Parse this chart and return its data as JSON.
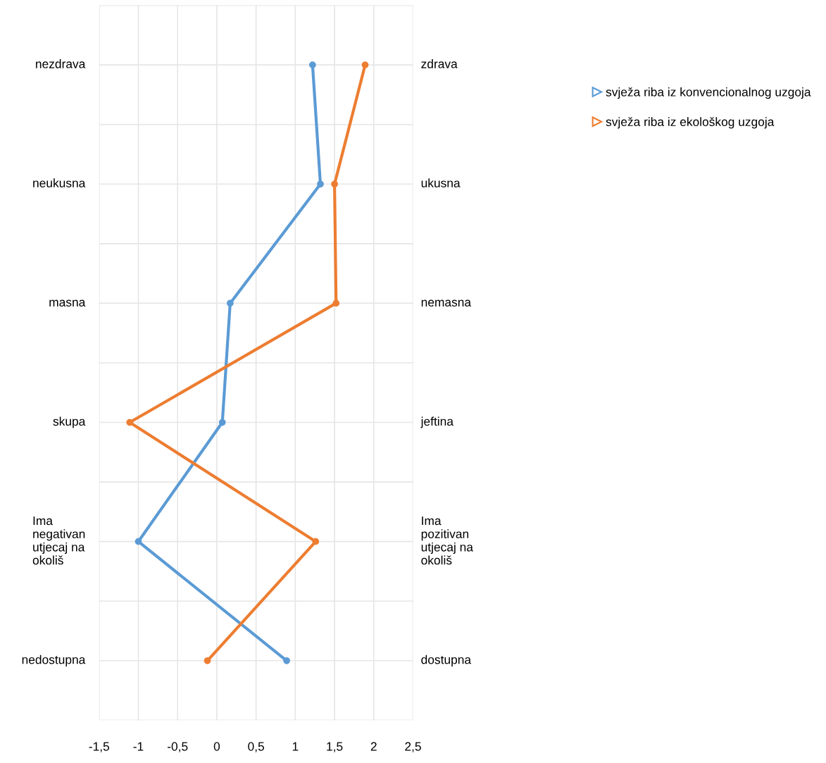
{
  "chart_data": {
    "type": "line",
    "orientation": "horizontal",
    "categories": [
      "nezdrava",
      "neukusna",
      "masna",
      "skupa",
      "Ima\nnegativan\nutjecaj na\nokoliš",
      "nedostupna"
    ],
    "annotations": [
      "zdrava",
      "ukusna",
      "nemasna",
      "jeftina",
      "Ima\npozitivan\nutjecaj na\nokoliš",
      "dostupna"
    ],
    "series": [
      {
        "name": "svježa riba iz konvencionalnog uzgoja",
        "color": "#5b9bd5",
        "values": [
          1.22,
          1.32,
          0.17,
          0.07,
          -1.0,
          0.89
        ]
      },
      {
        "name": "svježa riba iz ekološkog uzgoja",
        "color": "#ed7d31",
        "values": [
          1.89,
          1.5,
          1.52,
          -1.11,
          1.26,
          -0.12
        ]
      }
    ],
    "xlim": [
      -1.5,
      2.5
    ],
    "xticks": [
      {
        "value": -1.5,
        "label": "-1,5"
      },
      {
        "value": -1,
        "label": "-1"
      },
      {
        "value": -0.5,
        "label": "-0,5"
      },
      0,
      {
        "value": 0.5,
        "label": "0,5"
      },
      1,
      {
        "value": 1.5,
        "label": "1,5"
      },
      2,
      {
        "value": 2.5,
        "label": "2,5"
      }
    ],
    "grid": true,
    "legend": "right",
    "marker": "circle",
    "line_style": "solid"
  }
}
